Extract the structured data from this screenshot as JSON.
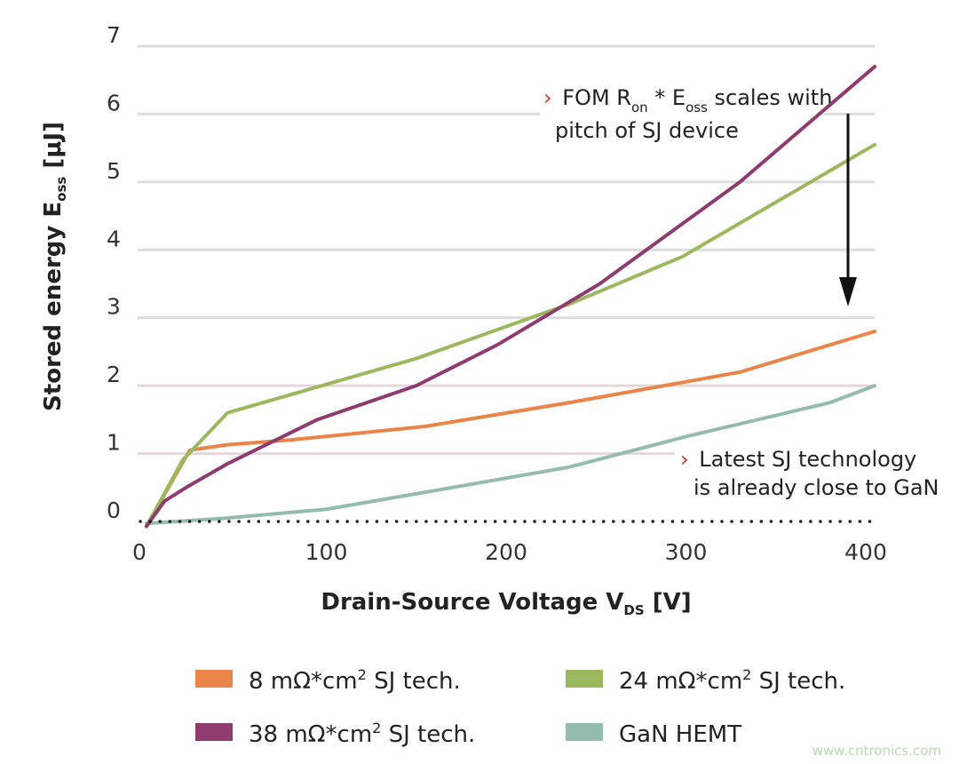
{
  "chart_data": {
    "type": "line",
    "xlabel": {
      "main": "Drain-Source Voltage V",
      "sub": "DS",
      "unit": " [V]"
    },
    "ylabel": {
      "main": "Stored energy E",
      "sub": "oss",
      "unit": "  [μJ]"
    },
    "xlim": [
      0,
      400
    ],
    "ylim": [
      0,
      7
    ],
    "xticks": [
      "0",
      "100",
      "200",
      "300",
      "400"
    ],
    "yticks": [
      "0",
      "1",
      "2",
      "3",
      "4",
      "5",
      "6",
      "7"
    ],
    "grid": true,
    "legend_position": "bottom",
    "series": [
      {
        "name": "8 mΩ*cm² SJ tech.",
        "name_parts": [
          "8 mΩ*cm",
          "2",
          " SJ tech."
        ],
        "color": "#ea8449",
        "x": [
          0,
          24,
          45,
          80,
          155,
          235,
          330,
          405
        ],
        "y": [
          -0.07,
          1.05,
          1.13,
          1.2,
          1.4,
          1.75,
          2.2,
          2.8
        ]
      },
      {
        "name": "24 mΩ*cm² SJ tech.",
        "name_parts": [
          "24 mΩ*cm",
          "2",
          " SJ tech."
        ],
        "color": "#9cb85f",
        "x": [
          0,
          20,
          45,
          150,
          235,
          298,
          405
        ],
        "y": [
          -0.07,
          0.9,
          1.6,
          2.4,
          3.2,
          3.9,
          5.55
        ]
      },
      {
        "name": "38 mΩ*cm² SJ tech.",
        "name_parts": [
          "38 mΩ*cm",
          "2",
          " SJ tech."
        ],
        "color": "#8e3b70",
        "x": [
          0,
          10,
          22,
          45,
          95,
          150,
          195,
          252,
          330,
          405
        ],
        "y": [
          -0.07,
          0.3,
          0.5,
          0.85,
          1.5,
          2.0,
          2.6,
          3.5,
          5.0,
          6.7
        ]
      },
      {
        "name": "GaN HEMT",
        "name_parts": [
          "GaN HEMT",
          "",
          ""
        ],
        "color": "#94bcab",
        "x": [
          0,
          45,
          100,
          170,
          235,
          300,
          380,
          405
        ],
        "y": [
          -0.03,
          0.05,
          0.18,
          0.5,
          0.8,
          1.25,
          1.75,
          2.0
        ]
      }
    ],
    "annotations": [
      {
        "line1": [
          "FOM R",
          "on",
          " * E",
          "oss",
          " scales with"
        ],
        "line2": "pitch of SJ device",
        "bullet": "›"
      },
      {
        "line1": "Latest SJ technology",
        "line2": "is already close to GaN",
        "bullet": "›"
      }
    ],
    "arrow": "down"
  },
  "watermark": "www.cntronics.com"
}
